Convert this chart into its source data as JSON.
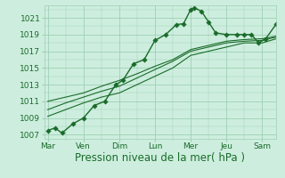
{
  "background_color": "#cdeede",
  "grid_color": "#9ecfb5",
  "line_color": "#1a6b2a",
  "ylim": [
    1006.5,
    1022.5
  ],
  "yticks": [
    1007,
    1009,
    1011,
    1013,
    1015,
    1017,
    1019,
    1021
  ],
  "xlabel": "Pression niveau de la mer( hPa )",
  "xlabel_fontsize": 8.5,
  "tick_fontsize": 6.5,
  "xtick_labels": [
    "Mar",
    "Ven",
    "Dim",
    "Lun",
    "Mer",
    "Jeu",
    "Sam"
  ],
  "xtick_positions": [
    0,
    1,
    2,
    3,
    4,
    5,
    6
  ],
  "xmin": -0.1,
  "xmax": 6.4,
  "series1_x": [
    0,
    0.2,
    0.4,
    0.7,
    1.0,
    1.3,
    1.6,
    1.9,
    2.1,
    2.4,
    2.7,
    3.0,
    3.3,
    3.6,
    3.8,
    4.0,
    4.1,
    4.3,
    4.5,
    4.7,
    5.0,
    5.3,
    5.5,
    5.7,
    5.9,
    6.1,
    6.4
  ],
  "series1_y": [
    1007.5,
    1007.8,
    1007.2,
    1008.3,
    1009.0,
    1010.5,
    1011.0,
    1013.0,
    1013.5,
    1015.5,
    1016.0,
    1018.3,
    1019.0,
    1020.2,
    1020.3,
    1022.0,
    1022.2,
    1021.8,
    1020.5,
    1019.2,
    1019.0,
    1019.0,
    1019.0,
    1019.0,
    1018.0,
    1018.5,
    1020.3
  ],
  "series2_x": [
    0,
    0.5,
    1.0,
    1.5,
    2.0,
    2.5,
    3.0,
    3.5,
    4.0,
    4.5,
    5.0,
    5.5,
    6.0,
    6.4
  ],
  "series2_y": [
    1009.2,
    1010.0,
    1010.8,
    1011.5,
    1012.0,
    1013.0,
    1014.0,
    1015.0,
    1016.5,
    1017.0,
    1017.5,
    1018.0,
    1018.0,
    1018.5
  ],
  "series3_x": [
    0,
    0.5,
    1.0,
    1.5,
    2.0,
    2.5,
    3.0,
    3.5,
    4.0,
    4.5,
    5.0,
    5.5,
    6.0,
    6.4
  ],
  "series3_y": [
    1010.0,
    1010.8,
    1011.5,
    1012.2,
    1012.8,
    1013.8,
    1014.8,
    1015.8,
    1017.0,
    1017.5,
    1018.0,
    1018.2,
    1018.3,
    1018.7
  ],
  "series4_x": [
    0,
    0.5,
    1.0,
    1.5,
    2.0,
    2.5,
    3.0,
    3.5,
    4.0,
    4.5,
    5.0,
    5.5,
    6.0,
    6.4
  ],
  "series4_y": [
    1011.0,
    1011.5,
    1012.0,
    1012.8,
    1013.5,
    1014.3,
    1015.2,
    1016.0,
    1017.2,
    1017.7,
    1018.2,
    1018.4,
    1018.5,
    1018.8
  ]
}
